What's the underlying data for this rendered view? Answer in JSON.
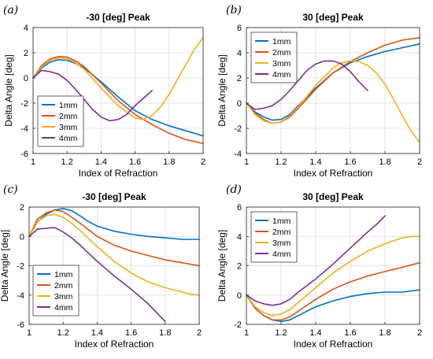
{
  "colors": {
    "1mm": "#0072BD",
    "2mm": "#D95319",
    "3mm": "#EDB120",
    "4mm": "#7E2F8E"
  },
  "chart_data": [
    {
      "panel": "(a)",
      "type": "line",
      "title": "-30 [deg] Peak",
      "xlabel": "Index of Refraction",
      "ylabel": "Delta Angle [deg]",
      "xlim": [
        1,
        2
      ],
      "ylim": [
        -6,
        4
      ],
      "xticks": [
        "1",
        "1.2",
        "1.4",
        "1.6",
        "1.8",
        "2"
      ],
      "yticks": [
        "-6",
        "-4",
        "-2",
        "0",
        "2",
        "4"
      ],
      "grid": true,
      "legend": "lower-left",
      "series": [
        {
          "name": "1mm",
          "x": [
            1,
            1.05,
            1.1,
            1.15,
            1.2,
            1.25,
            1.3,
            1.4,
            1.5,
            1.6,
            1.7,
            1.8,
            1.9,
            2.0
          ],
          "y": [
            0,
            0.8,
            1.25,
            1.45,
            1.4,
            1.15,
            0.8,
            -0.3,
            -1.5,
            -2.6,
            -3.3,
            -3.8,
            -4.2,
            -4.6
          ]
        },
        {
          "name": "2mm",
          "x": [
            1,
            1.05,
            1.1,
            1.15,
            1.2,
            1.25,
            1.3,
            1.4,
            1.5,
            1.6,
            1.7,
            1.8,
            1.9,
            2.0
          ],
          "y": [
            0,
            1.0,
            1.5,
            1.7,
            1.65,
            1.35,
            0.9,
            -0.4,
            -1.8,
            -2.9,
            -3.7,
            -4.4,
            -4.9,
            -5.2
          ]
        },
        {
          "name": "3mm",
          "x": [
            1,
            1.05,
            1.1,
            1.15,
            1.2,
            1.25,
            1.3,
            1.4,
            1.5,
            1.6,
            1.65,
            1.7,
            1.75,
            1.8,
            1.85,
            1.9,
            1.95,
            2.0
          ],
          "y": [
            0,
            0.9,
            1.4,
            1.6,
            1.55,
            1.2,
            0.7,
            -0.8,
            -2.2,
            -3.2,
            -3.3,
            -3.0,
            -2.3,
            -1.3,
            -0.1,
            1.1,
            2.3,
            3.2
          ]
        },
        {
          "name": "4mm",
          "x": [
            1,
            1.05,
            1.1,
            1.15,
            1.2,
            1.25,
            1.3,
            1.35,
            1.4,
            1.45,
            1.5,
            1.55,
            1.6,
            1.65,
            1.7
          ],
          "y": [
            0,
            0.6,
            0.5,
            0.3,
            -0.2,
            -0.9,
            -1.7,
            -2.5,
            -3.1,
            -3.4,
            -3.3,
            -2.9,
            -2.2,
            -1.6,
            -1.0
          ]
        }
      ]
    },
    {
      "panel": "(b)",
      "type": "line",
      "title": "30 [deg] Peak",
      "xlabel": "Index of Refraction",
      "ylabel": "Delta Angle [deg]",
      "xlim": [
        1,
        2
      ],
      "ylim": [
        -4,
        6
      ],
      "xticks": [
        "1",
        "1.2",
        "1.4",
        "1.6",
        "1.8",
        "2"
      ],
      "yticks": [
        "-4",
        "-2",
        "0",
        "2",
        "4",
        "6"
      ],
      "grid": true,
      "legend": "upper-left",
      "series": [
        {
          "name": "1mm",
          "x": [
            1,
            1.05,
            1.1,
            1.15,
            1.2,
            1.25,
            1.3,
            1.4,
            1.5,
            1.6,
            1.7,
            1.8,
            1.9,
            2.0
          ],
          "y": [
            0,
            -0.7,
            -1.1,
            -1.35,
            -1.3,
            -0.9,
            -0.2,
            1.2,
            2.4,
            3.2,
            3.7,
            4.1,
            4.4,
            4.7
          ]
        },
        {
          "name": "2mm",
          "x": [
            1,
            1.05,
            1.1,
            1.15,
            1.2,
            1.25,
            1.3,
            1.4,
            1.5,
            1.6,
            1.7,
            1.8,
            1.9,
            2.0
          ],
          "y": [
            0,
            -0.8,
            -1.3,
            -1.6,
            -1.5,
            -1.1,
            -0.4,
            1.1,
            2.4,
            3.3,
            4.0,
            4.6,
            5.0,
            5.2
          ]
        },
        {
          "name": "3mm",
          "x": [
            1,
            1.05,
            1.1,
            1.15,
            1.2,
            1.25,
            1.3,
            1.4,
            1.5,
            1.55,
            1.6,
            1.65,
            1.7,
            1.75,
            1.8,
            1.85,
            1.9,
            1.95,
            2.0
          ],
          "y": [
            0,
            -0.9,
            -1.4,
            -1.6,
            -1.5,
            -1.0,
            -0.3,
            1.4,
            2.8,
            3.2,
            3.35,
            3.3,
            3.0,
            2.4,
            1.5,
            0.3,
            -1.0,
            -2.2,
            -3.1
          ]
        },
        {
          "name": "4mm",
          "x": [
            1,
            1.05,
            1.1,
            1.15,
            1.2,
            1.25,
            1.3,
            1.35,
            1.4,
            1.45,
            1.5,
            1.55,
            1.6,
            1.65,
            1.7
          ],
          "y": [
            0,
            -0.5,
            -0.4,
            -0.2,
            0.3,
            1.0,
            1.8,
            2.6,
            3.1,
            3.35,
            3.35,
            3.1,
            2.5,
            1.7,
            1.0
          ]
        }
      ]
    },
    {
      "panel": "(c)",
      "type": "line",
      "title": "-30 [deg] Peak",
      "xlabel": "Index of Refraction",
      "ylabel": "Delta Angle [deg]",
      "xlim": [
        1,
        2
      ],
      "ylim": [
        -6,
        2
      ],
      "xticks": [
        "1",
        "1.2",
        "1.4",
        "1.6",
        "1.8",
        "2"
      ],
      "yticks": [
        "-6",
        "-4",
        "-2",
        "0",
        "2"
      ],
      "grid": true,
      "legend": "lower-left",
      "series": [
        {
          "name": "1mm",
          "x": [
            1,
            1.05,
            1.1,
            1.15,
            1.2,
            1.25,
            1.3,
            1.35,
            1.4,
            1.5,
            1.6,
            1.7,
            1.8,
            1.9,
            2.0
          ],
          "y": [
            0,
            1.0,
            1.5,
            1.8,
            1.9,
            1.75,
            1.4,
            1.0,
            0.7,
            0.35,
            0.15,
            0.0,
            -0.1,
            -0.2,
            -0.2
          ]
        },
        {
          "name": "2mm",
          "x": [
            1,
            1.05,
            1.1,
            1.15,
            1.2,
            1.25,
            1.3,
            1.4,
            1.5,
            1.6,
            1.7,
            1.8,
            1.9,
            2.0
          ],
          "y": [
            0,
            1.2,
            1.6,
            1.8,
            1.7,
            1.3,
            0.9,
            0.0,
            -0.6,
            -1.0,
            -1.3,
            -1.6,
            -1.8,
            -2.0
          ]
        },
        {
          "name": "3mm",
          "x": [
            1,
            1.05,
            1.1,
            1.15,
            1.2,
            1.25,
            1.3,
            1.4,
            1.5,
            1.6,
            1.7,
            1.8,
            1.9,
            1.95,
            2.0
          ],
          "y": [
            0,
            1.0,
            1.4,
            1.5,
            1.3,
            0.9,
            0.4,
            -0.7,
            -1.7,
            -2.5,
            -3.1,
            -3.5,
            -3.8,
            -3.95,
            -4.0
          ]
        },
        {
          "name": "4mm",
          "x": [
            1,
            1.05,
            1.1,
            1.15,
            1.2,
            1.25,
            1.3,
            1.4,
            1.5,
            1.6,
            1.7,
            1.75,
            1.8
          ],
          "y": [
            0,
            0.5,
            0.55,
            0.6,
            0.3,
            -0.1,
            -0.6,
            -1.7,
            -2.7,
            -3.6,
            -4.6,
            -5.2,
            -5.8
          ]
        }
      ]
    },
    {
      "panel": "(d)",
      "type": "line",
      "title": "30 [deg] Peak",
      "xlabel": "Index of Refraction",
      "ylabel": "Delta Angle [deg]",
      "xlim": [
        1,
        2
      ],
      "ylim": [
        -2,
        6
      ],
      "xticks": [
        "1",
        "1.2",
        "1.4",
        "1.6",
        "1.8",
        "2"
      ],
      "yticks": [
        "-2",
        "0",
        "2",
        "4",
        "6"
      ],
      "grid": true,
      "legend": "upper-left",
      "series": [
        {
          "name": "1mm",
          "x": [
            1,
            1.05,
            1.1,
            1.15,
            1.2,
            1.25,
            1.3,
            1.4,
            1.5,
            1.6,
            1.7,
            1.8,
            1.9,
            2.0
          ],
          "y": [
            0,
            -0.9,
            -1.4,
            -1.7,
            -1.8,
            -1.7,
            -1.4,
            -0.8,
            -0.4,
            -0.1,
            0.1,
            0.2,
            0.2,
            0.35
          ]
        },
        {
          "name": "2mm",
          "x": [
            1,
            1.05,
            1.1,
            1.15,
            1.2,
            1.25,
            1.3,
            1.4,
            1.5,
            1.6,
            1.7,
            1.8,
            1.9,
            2.0
          ],
          "y": [
            0,
            -0.9,
            -1.4,
            -1.7,
            -1.7,
            -1.5,
            -1.1,
            -0.3,
            0.4,
            0.9,
            1.3,
            1.6,
            1.9,
            2.2
          ]
        },
        {
          "name": "3mm",
          "x": [
            1,
            1.05,
            1.1,
            1.15,
            1.2,
            1.25,
            1.3,
            1.4,
            1.5,
            1.6,
            1.7,
            1.8,
            1.9,
            1.95,
            2.0
          ],
          "y": [
            0,
            -0.8,
            -1.2,
            -1.4,
            -1.3,
            -1.0,
            -0.5,
            0.5,
            1.5,
            2.3,
            3.0,
            3.5,
            3.9,
            4.0,
            4.0
          ]
        },
        {
          "name": "4mm",
          "x": [
            1,
            1.05,
            1.1,
            1.15,
            1.2,
            1.25,
            1.3,
            1.4,
            1.5,
            1.6,
            1.7,
            1.75,
            1.8
          ],
          "y": [
            0,
            -0.4,
            -0.6,
            -0.7,
            -0.6,
            -0.3,
            0.2,
            1.1,
            2.1,
            3.2,
            4.3,
            4.8,
            5.4
          ]
        }
      ]
    }
  ]
}
